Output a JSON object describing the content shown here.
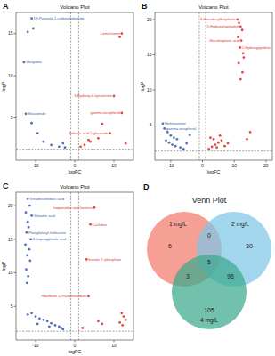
{
  "chart_data": [
    {
      "type": "scatter",
      "label": "A",
      "title": "Volcano Plot",
      "x_label": "logFC",
      "y_label": "logP",
      "xlim": [
        -15,
        15
      ],
      "ylim": [
        0,
        17.5
      ],
      "xticks": [
        -10,
        0,
        10
      ],
      "yticks": [
        5,
        10,
        15
      ],
      "grid": false,
      "thresholds": {
        "x": [
          -1,
          1
        ],
        "y": 1.3
      },
      "series": [
        {
          "color": "#3a63ad",
          "x": [
            -11,
            -10.6,
            -12,
            -13,
            -12.5,
            -11,
            -9.5,
            -8,
            -6,
            -4,
            -3,
            -2.5
          ],
          "values": [
            16.8,
            15.6,
            15.2,
            11.6,
            5.5,
            4.4,
            3.2,
            2.2,
            1.8,
            1.6,
            2,
            1.5
          ]
        },
        {
          "color": "#e2332b",
          "x": [
            12,
            11.5,
            10,
            12,
            9,
            6,
            4,
            2.5,
            1.5,
            3.5,
            13,
            7
          ],
          "values": [
            15,
            14.6,
            7.6,
            5.6,
            3.2,
            2.6,
            2.2,
            1.8,
            1.6,
            2.4,
            2,
            4.3
          ]
        }
      ],
      "annotations": [
        {
          "text": "1H-Pyrazole-1-carboximidamide",
          "x": -11,
          "y": 16.8,
          "color": "#3a63ad"
        },
        {
          "text": "Glergoline",
          "x": -13,
          "y": 11.6,
          "color": "#3a63ad"
        },
        {
          "text": "Stearamide",
          "x": -12.5,
          "y": 5.5,
          "color": "#3a63ad"
        },
        {
          "text": "Lumichrome",
          "x": 12,
          "y": 15,
          "color": "#e2332b"
        },
        {
          "text": "3-Hydroxy-L-kynurenine",
          "x": 10,
          "y": 7.6,
          "color": "#e2332b"
        },
        {
          "text": "gamma-tocopherol",
          "x": 12,
          "y": 5.6,
          "color": "#e2332b"
        },
        {
          "text": "Sebacic acid 5-glucoside",
          "x": 9,
          "y": 3.2,
          "color": "#e2332b"
        }
      ]
    },
    {
      "type": "scatter",
      "label": "B",
      "title": "Volcano Plot",
      "x_label": "logFC",
      "y_label": "logP",
      "xlim": [
        -15,
        22
      ],
      "ylim": [
        0,
        21
      ],
      "xticks": [
        -10,
        0,
        10,
        20
      ],
      "yticks": [
        5,
        10,
        15,
        20
      ],
      "grid": false,
      "thresholds": {
        "x": [
          -1,
          1
        ],
        "y": 1.3
      },
      "series": [
        {
          "color": "#3a63ad",
          "x": [
            -12,
            -11,
            -10,
            -9,
            -8,
            -11.5,
            -10.5,
            -9.5,
            -8.5,
            -7,
            -12.5,
            -6,
            -5,
            -4
          ],
          "values": [
            4.5,
            4,
            3.5,
            3.2,
            3,
            2.8,
            2.5,
            2.2,
            2,
            1.8,
            5.2,
            1.6,
            2.4,
            3.6
          ]
        },
        {
          "color": "#e2332b",
          "x": [
            11,
            11.5,
            12,
            12.5,
            11.2,
            12.2,
            11.8,
            12.8,
            13,
            11.4,
            12.6,
            12,
            2,
            3,
            4,
            5,
            6,
            3.5,
            2.5,
            4.5,
            7,
            8,
            5.5,
            14,
            15
          ],
          "values": [
            20,
            19.5,
            19,
            18.5,
            17.5,
            17,
            16,
            15.2,
            14.6,
            13.8,
            12.5,
            11.5,
            1.6,
            1.9,
            2.2,
            2.5,
            2.8,
            3,
            3.2,
            1.8,
            2,
            2.4,
            3.5,
            3,
            4
          ]
        }
      ],
      "annotations": [
        {
          "text": "Methoxamine",
          "x": -12.5,
          "y": 5.2,
          "color": "#3a63ad"
        },
        {
          "text": "gamma-tocopherol",
          "x": -12,
          "y": 4.5,
          "color": "#3a63ad"
        },
        {
          "text": "3-Hexadecylthiophene",
          "x": 11,
          "y": 20,
          "color": "#e2332b"
        },
        {
          "text": "5-Hydroxytryptophol",
          "x": 12,
          "y": 19,
          "color": "#e2332b"
        },
        {
          "text": "Glucoheptonic acid",
          "x": 12.2,
          "y": 17,
          "color": "#e2332b"
        },
        {
          "text": "2-Hydroxypyridine",
          "x": 11.8,
          "y": 16,
          "color": "#e2332b"
        }
      ]
    },
    {
      "type": "scatter",
      "label": "C",
      "title": "Volcano Plot",
      "x_label": "logFC",
      "y_label": "logP",
      "xlim": [
        -15,
        15
      ],
      "ylim": [
        0,
        22
      ],
      "xticks": [
        -10,
        0,
        10
      ],
      "yticks": [
        5,
        10,
        15,
        20
      ],
      "grid": false,
      "thresholds": {
        "x": [
          -1,
          1
        ],
        "y": 1.3
      },
      "series": [
        {
          "color": "#3a63ad",
          "x": [
            -12,
            -11.5,
            -12.5,
            -11,
            -12,
            -11.8,
            -12.3,
            -11.2,
            -12.6,
            -11.6,
            -12.1,
            -11.4,
            -12.4,
            -11.9,
            -12.2,
            -10,
            -9,
            -8,
            -7,
            -6,
            -5,
            -4,
            -3.5,
            -11,
            -12,
            -9.5,
            -6.5,
            -3
          ],
          "values": [
            21,
            20,
            19,
            18.5,
            17.6,
            16.8,
            16,
            15,
            14.2,
            13.5,
            12.6,
            11.8,
            10.5,
            9.5,
            8.5,
            3.5,
            3.2,
            3,
            2.8,
            2.5,
            2.2,
            2,
            1.8,
            4,
            3.8,
            2.4,
            2,
            1.6
          ]
        },
        {
          "color": "#e2332b",
          "x": [
            5,
            4,
            3,
            3.5,
            12,
            12.5,
            13,
            11.5,
            12.2,
            2,
            6,
            7
          ],
          "values": [
            19.7,
            17.2,
            12,
            6.5,
            4,
            3.5,
            3,
            2.6,
            2.2,
            1.8,
            2.8,
            2.4
          ]
        }
      ],
      "annotations": [
        {
          "text": "Tetradecanedioic acid",
          "x": -12,
          "y": 21,
          "color": "#3a63ad"
        },
        {
          "text": "Glutamic acid",
          "x": -11,
          "y": 18.5,
          "color": "#3a63ad"
        },
        {
          "text": "Phenylalanyl-Isoleucine",
          "x": -12.3,
          "y": 16,
          "color": "#3a63ad"
        },
        {
          "text": "2-Isopropylmalic acid",
          "x": -11.2,
          "y": 15,
          "color": "#3a63ad"
        },
        {
          "text": "Isoquinoline and Isomers",
          "x": 5,
          "y": 19.7,
          "color": "#e2332b"
        },
        {
          "text": "Cuchiline",
          "x": 4,
          "y": 17.2,
          "color": "#e2332b"
        },
        {
          "text": "Inosine 5'-phosphate",
          "x": 3,
          "y": 12,
          "color": "#e2332b"
        },
        {
          "text": "Riboflavin 5-Phosphosodium",
          "x": 3.5,
          "y": 6.5,
          "color": "#e2332b"
        }
      ]
    },
    {
      "type": "venn",
      "label": "D",
      "title": "Venn Plot",
      "sets": [
        {
          "name": "1 mg/L",
          "color": "#f27a6b"
        },
        {
          "name": "2 mg/L",
          "color": "#7ec6e6"
        },
        {
          "name": "4 mg/L",
          "color": "#3aa98d"
        }
      ],
      "regions": [
        {
          "sets": [
            0
          ],
          "value": 6
        },
        {
          "sets": [
            1
          ],
          "value": 30
        },
        {
          "sets": [
            2
          ],
          "value": 105
        },
        {
          "sets": [
            0,
            1
          ],
          "value": 0
        },
        {
          "sets": [
            0,
            2
          ],
          "value": 3
        },
        {
          "sets": [
            1,
            2
          ],
          "value": 96
        },
        {
          "sets": [
            0,
            1,
            2
          ],
          "value": 5
        }
      ]
    }
  ]
}
